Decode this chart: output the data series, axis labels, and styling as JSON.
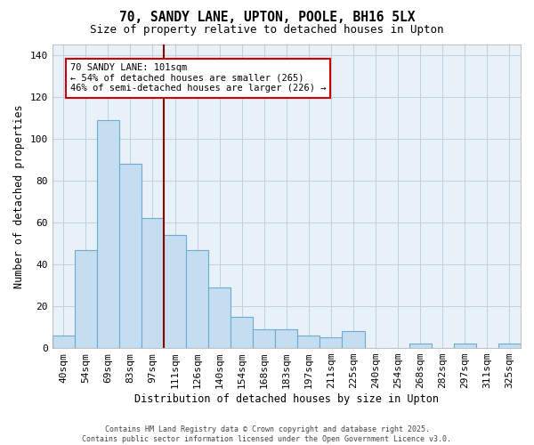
{
  "title": "70, SANDY LANE, UPTON, POOLE, BH16 5LX",
  "subtitle": "Size of property relative to detached houses in Upton",
  "xlabel": "Distribution of detached houses by size in Upton",
  "ylabel": "Number of detached properties",
  "categories": [
    "40sqm",
    "54sqm",
    "69sqm",
    "83sqm",
    "97sqm",
    "111sqm",
    "126sqm",
    "140sqm",
    "154sqm",
    "168sqm",
    "183sqm",
    "197sqm",
    "211sqm",
    "225sqm",
    "240sqm",
    "254sqm",
    "268sqm",
    "282sqm",
    "297sqm",
    "311sqm",
    "325sqm"
  ],
  "values": [
    6,
    47,
    109,
    88,
    62,
    54,
    47,
    29,
    15,
    9,
    9,
    6,
    5,
    8,
    0,
    0,
    2,
    0,
    2,
    0,
    2
  ],
  "bar_color": "#c5ddf0",
  "bar_edge_color": "#6aaad4",
  "vline_x": 4.5,
  "vline_color": "#8b0000",
  "annotation_text": "70 SANDY LANE: 101sqm\n← 54% of detached houses are smaller (265)\n46% of semi-detached houses are larger (226) →",
  "ylim": [
    0,
    145
  ],
  "yticks": [
    0,
    20,
    40,
    60,
    80,
    100,
    120,
    140
  ],
  "plot_bg_color": "#e8f0f8",
  "background_color": "#ffffff",
  "grid_color": "#c0d0e0",
  "footer_line1": "Contains HM Land Registry data © Crown copyright and database right 2025.",
  "footer_line2": "Contains public sector information licensed under the Open Government Licence v3.0."
}
